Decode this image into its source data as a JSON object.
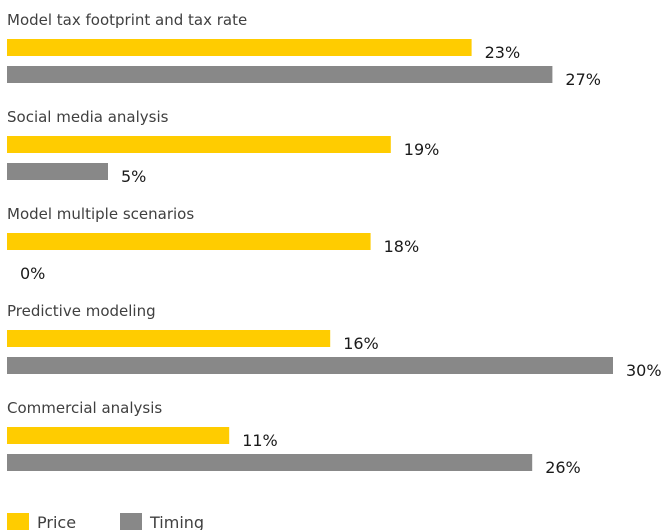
{
  "chart_data": {
    "type": "bar",
    "orientation": "horizontal",
    "categories": [
      "Model tax footprint and tax rate",
      "Social media analysis",
      "Model multiple scenarios",
      "Predictive modeling",
      "Commercial analysis"
    ],
    "series": [
      {
        "name": "Price",
        "values": [
          23,
          19,
          18,
          16,
          11
        ],
        "labels": [
          "23%",
          "19%",
          "18%",
          "16%",
          "11%"
        ],
        "color": "#FFCC00"
      },
      {
        "name": "Timing",
        "values": [
          27,
          5,
          0,
          30,
          26
        ],
        "labels": [
          "27%",
          "5%",
          "0%",
          "30%",
          "26%"
        ],
        "color": "#888888"
      }
    ],
    "title": "",
    "xlabel": "",
    "ylabel": "",
    "xlim": [
      0,
      30
    ],
    "grid": false,
    "legend": "bottom-left"
  }
}
